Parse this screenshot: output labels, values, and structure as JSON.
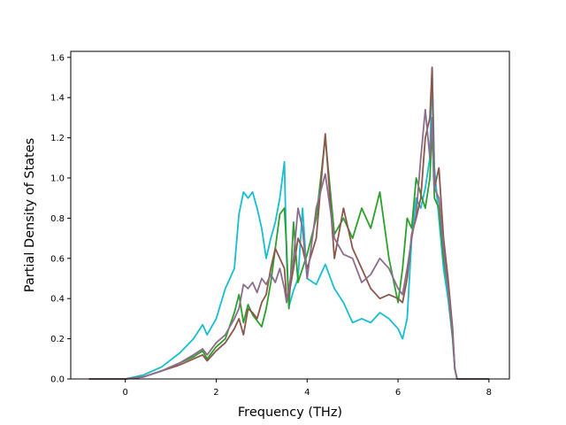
{
  "chart_data": {
    "type": "line",
    "title": "",
    "xlabel": "Frequency (THz)",
    "ylabel": "Partial Density of States",
    "xlim": [
      -1.2,
      8.45
    ],
    "ylim": [
      0,
      1.63
    ],
    "xticks": [
      0,
      2,
      4,
      6,
      8
    ],
    "yticks": [
      0.0,
      0.2,
      0.4,
      0.6,
      0.8,
      1.0,
      1.2,
      1.4,
      1.6
    ],
    "xtick_labels": [
      "0",
      "2",
      "4",
      "6",
      "8"
    ],
    "ytick_labels": [
      "0.0",
      "0.2",
      "0.4",
      "0.6",
      "0.8",
      "1.0",
      "1.2",
      "1.4",
      "1.6"
    ],
    "grid": false,
    "legend": "none",
    "series": [
      {
        "color": "#17becf",
        "x": [
          -0.8,
          0.0,
          0.4,
          0.8,
          1.2,
          1.5,
          1.7,
          1.8,
          2.0,
          2.2,
          2.4,
          2.5,
          2.6,
          2.7,
          2.8,
          2.9,
          3.0,
          3.1,
          3.2,
          3.3,
          3.4,
          3.5,
          3.55,
          3.6,
          3.7,
          3.8,
          3.9,
          4.0,
          4.2,
          4.4,
          4.6,
          4.8,
          5.0,
          5.2,
          5.4,
          5.6,
          5.8,
          6.0,
          6.1,
          6.2,
          6.3,
          6.4,
          6.5,
          6.6,
          6.7,
          6.75,
          6.8,
          6.9,
          7.0,
          7.1,
          7.2,
          7.25,
          7.3,
          8.0
        ],
        "y": [
          0.0,
          0.0,
          0.02,
          0.06,
          0.13,
          0.2,
          0.27,
          0.22,
          0.3,
          0.45,
          0.55,
          0.82,
          0.93,
          0.9,
          0.93,
          0.85,
          0.75,
          0.6,
          0.7,
          0.78,
          0.9,
          1.08,
          0.6,
          0.36,
          0.44,
          0.5,
          0.85,
          0.5,
          0.47,
          0.57,
          0.45,
          0.38,
          0.28,
          0.3,
          0.28,
          0.33,
          0.3,
          0.25,
          0.2,
          0.3,
          0.7,
          0.9,
          0.85,
          0.95,
          1.1,
          1.55,
          1.05,
          0.8,
          0.55,
          0.4,
          0.2,
          0.05,
          0.0,
          0.0
        ]
      },
      {
        "color": "#2ca02c",
        "x": [
          -0.8,
          0.0,
          0.4,
          0.8,
          1.2,
          1.5,
          1.7,
          1.8,
          2.0,
          2.2,
          2.4,
          2.5,
          2.6,
          2.7,
          2.8,
          2.9,
          3.0,
          3.1,
          3.2,
          3.3,
          3.4,
          3.5,
          3.55,
          3.6,
          3.7,
          3.8,
          3.9,
          4.0,
          4.2,
          4.4,
          4.6,
          4.8,
          5.0,
          5.2,
          5.4,
          5.6,
          5.8,
          6.0,
          6.1,
          6.2,
          6.3,
          6.4,
          6.5,
          6.6,
          6.7,
          6.75,
          6.8,
          6.9,
          7.0,
          7.1,
          7.2,
          7.25,
          7.3,
          8.0
        ],
        "y": [
          0.0,
          0.0,
          0.01,
          0.04,
          0.08,
          0.11,
          0.14,
          0.1,
          0.16,
          0.2,
          0.33,
          0.42,
          0.28,
          0.37,
          0.32,
          0.29,
          0.26,
          0.35,
          0.48,
          0.65,
          0.82,
          0.85,
          0.65,
          0.35,
          0.78,
          0.48,
          0.55,
          0.62,
          0.8,
          1.2,
          0.72,
          0.8,
          0.7,
          0.85,
          0.75,
          0.93,
          0.6,
          0.38,
          0.55,
          0.8,
          0.75,
          1.0,
          0.92,
          0.85,
          1.0,
          1.25,
          0.9,
          0.85,
          0.6,
          0.45,
          0.2,
          0.05,
          0.0,
          0.0
        ]
      },
      {
        "color": "#8c564b",
        "x": [
          -0.8,
          0.0,
          0.4,
          0.8,
          1.2,
          1.5,
          1.7,
          1.8,
          2.0,
          2.2,
          2.4,
          2.5,
          2.6,
          2.7,
          2.8,
          2.9,
          3.0,
          3.1,
          3.2,
          3.3,
          3.4,
          3.5,
          3.55,
          3.6,
          3.7,
          3.8,
          3.9,
          4.0,
          4.2,
          4.4,
          4.6,
          4.8,
          5.0,
          5.2,
          5.4,
          5.6,
          5.8,
          6.0,
          6.1,
          6.2,
          6.3,
          6.4,
          6.5,
          6.6,
          6.7,
          6.75,
          6.8,
          6.9,
          7.0,
          7.1,
          7.2,
          7.25,
          7.3,
          8.0
        ],
        "y": [
          0.0,
          0.0,
          0.01,
          0.04,
          0.07,
          0.1,
          0.12,
          0.09,
          0.14,
          0.18,
          0.25,
          0.3,
          0.22,
          0.35,
          0.33,
          0.3,
          0.38,
          0.42,
          0.55,
          0.65,
          0.6,
          0.55,
          0.4,
          0.42,
          0.55,
          0.7,
          0.65,
          0.55,
          0.7,
          1.22,
          0.6,
          0.85,
          0.65,
          0.55,
          0.45,
          0.4,
          0.42,
          0.4,
          0.38,
          0.5,
          0.72,
          0.8,
          0.9,
          1.2,
          1.3,
          1.55,
          0.95,
          1.05,
          0.7,
          0.5,
          0.25,
          0.05,
          0.0,
          0.0
        ]
      },
      {
        "color": "#8c6d8c",
        "x": [
          -0.8,
          0.0,
          0.4,
          0.8,
          1.2,
          1.5,
          1.7,
          1.8,
          2.0,
          2.2,
          2.4,
          2.5,
          2.6,
          2.7,
          2.8,
          2.9,
          3.0,
          3.1,
          3.2,
          3.3,
          3.4,
          3.5,
          3.55,
          3.6,
          3.7,
          3.8,
          3.9,
          4.0,
          4.2,
          4.4,
          4.6,
          4.8,
          5.0,
          5.2,
          5.4,
          5.6,
          5.8,
          6.0,
          6.1,
          6.2,
          6.3,
          6.4,
          6.5,
          6.6,
          6.7,
          6.75,
          6.8,
          6.9,
          7.0,
          7.1,
          7.2,
          7.25,
          7.3,
          8.0
        ],
        "y": [
          0.0,
          0.0,
          0.01,
          0.04,
          0.08,
          0.12,
          0.15,
          0.12,
          0.18,
          0.22,
          0.3,
          0.35,
          0.47,
          0.45,
          0.48,
          0.43,
          0.5,
          0.47,
          0.52,
          0.48,
          0.55,
          0.45,
          0.38,
          0.45,
          0.6,
          0.85,
          0.75,
          0.5,
          0.85,
          1.02,
          0.7,
          0.62,
          0.6,
          0.48,
          0.52,
          0.6,
          0.55,
          0.45,
          0.42,
          0.55,
          0.7,
          0.82,
          1.1,
          1.34,
          1.1,
          1.3,
          0.95,
          0.9,
          0.65,
          0.45,
          0.22,
          0.05,
          0.0,
          0.0
        ]
      }
    ]
  }
}
